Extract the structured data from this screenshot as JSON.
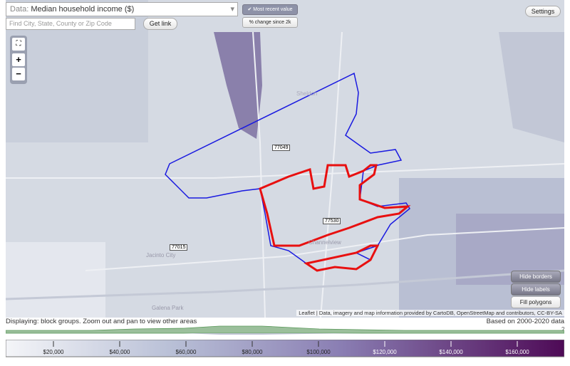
{
  "header": {
    "data_label": "Data:",
    "data_value": "Median household income ($)",
    "search_placeholder": "Find City, State, County or Zip Code",
    "get_link": "Get link",
    "most_recent": "Most recent value",
    "percent_change": "% change since 2k",
    "settings": "Settings"
  },
  "map": {
    "zoom_in": "+",
    "zoom_out": "−",
    "labels": [
      "Sheldon",
      "77049",
      "77530",
      "Channelview",
      "77015",
      "Jacinto City",
      "Galena Park"
    ],
    "buttons": [
      "Hide borders",
      "Hide labels",
      "Fill polygons"
    ],
    "attribution": "Leaflet | Data, imagery and map information provided by CartoDB, OpenStreetMap and contributors, CC-BY-SA"
  },
  "footer": {
    "displaying": "Displaying: block groups. Zoom out and pan to view other areas",
    "based_on": "Based on 2000-2020 data",
    "help": "?"
  },
  "legend": {
    "ticks": [
      "$20,000",
      "$40,000",
      "$60,000",
      "$80,000",
      "$100,000",
      "$120,000",
      "$140,000",
      "$160,000"
    ]
  }
}
